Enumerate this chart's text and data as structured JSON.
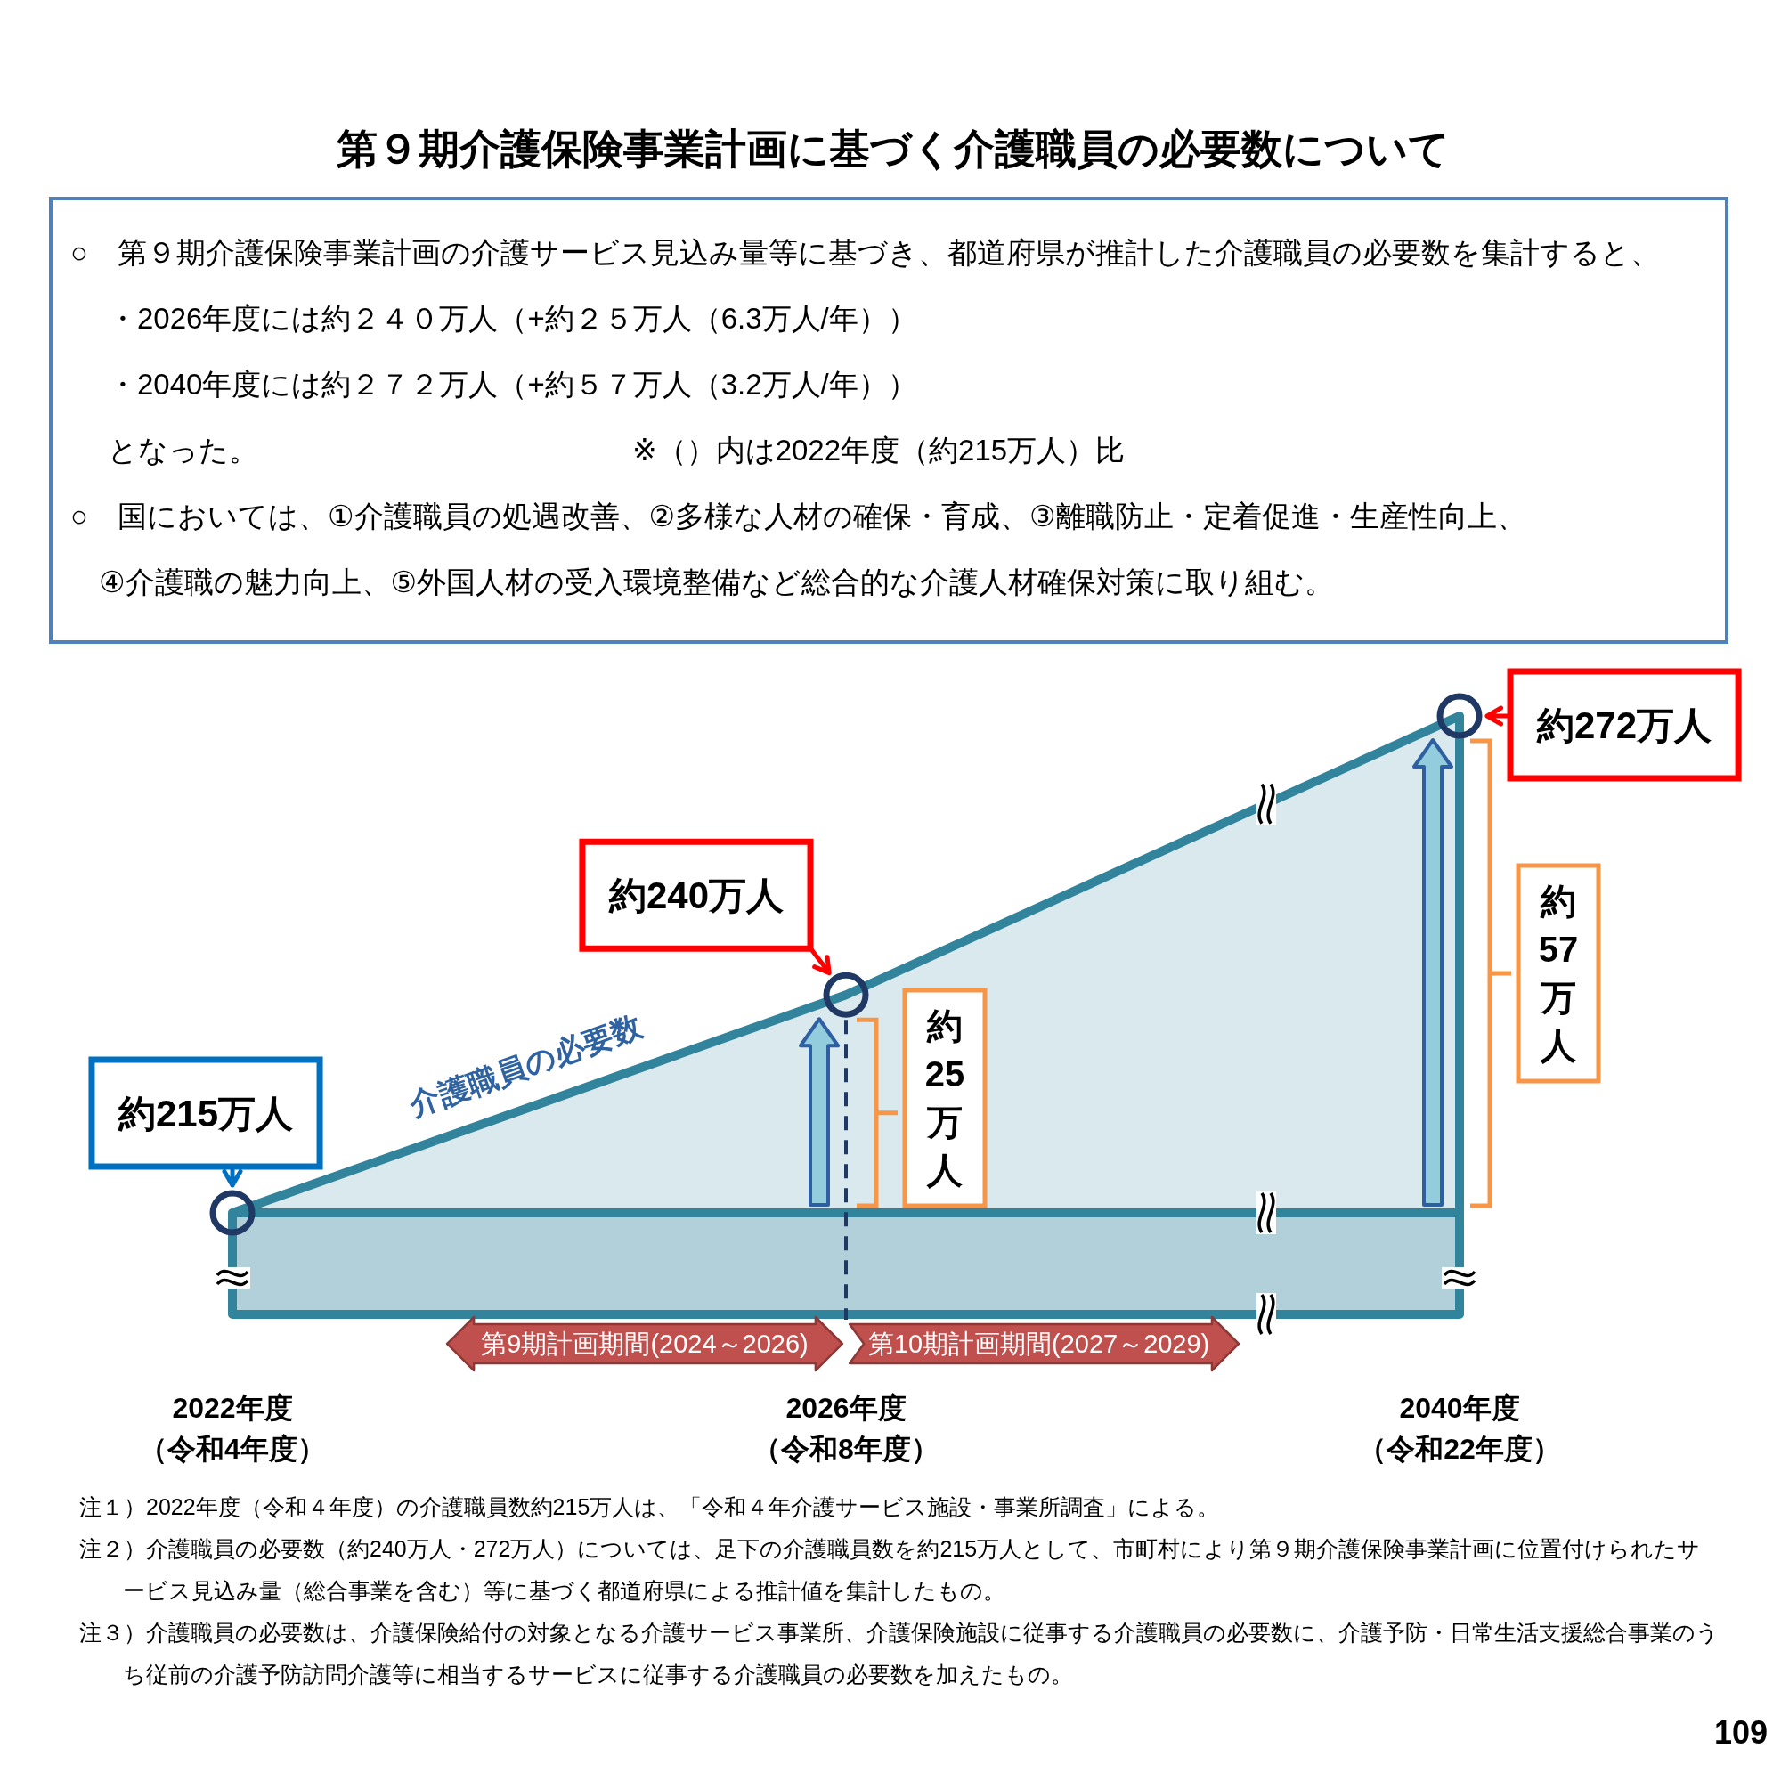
{
  "chart_data": {
    "type": "area",
    "title": "第９期介護保険事業計画に基づく介護職員の必要数について",
    "categories": [
      "2022年度（令和4年度）",
      "2026年度（令和8年度）",
      "2040年度（令和22年度）"
    ],
    "series": [
      {
        "name": "介護職員の必要数",
        "color": "#31849b",
        "values": [
          215,
          240,
          272
        ],
        "value_labels": [
          null,
          "約240万人",
          "約272万人"
        ]
      }
    ],
    "ref_lines": [
      {
        "axis": "y",
        "value": 215,
        "color": "#31849b",
        "label": "約215万人"
      },
      {
        "axis": "x",
        "value": "2026年度（令和8年度）",
        "line_style": "dashed",
        "color": "#1f3864"
      }
    ],
    "annotations": [
      {
        "text": "約25万人",
        "x": "2026年度（令和8年度）"
      },
      {
        "text": "約57万人",
        "x": "2040年度（令和22年度）"
      },
      "○　第９期介護保険事業計画の介護サービス見込み量等に基づき、都道府県が推計した介護職員の必要数を集計すると、",
      "・2026年度には約２４０万人（+約２５万人（6.3万人/年））",
      "・2040年度には約２７２万人（+約５７万人（3.2万人/年））",
      "となった。",
      "※（）内は2022年度（約215万人）比",
      "○　国においては、①介護職員の処遇改善、②多様な人材の確保・育成、③離職防止・定着促進・生産性向上、",
      "④介護職の魅力向上、⑤外国人材の受入環境整備など総合的な介護人材確保対策に取り組む。",
      "第9期計画期間(2024～2026)",
      "第10期計画期間(2027～2029)",
      "注１）2022年度（令和４年度）の介護職員数約215万人は、「令和４年介護サービス施設・事業所調査」による。",
      "注２）介護職員の必要数（約240万人・272万人）については、足下の介護職員数を約215万人として、市町村により第９期介護保険事業計画に位置付けられたサービス見込み量（総合事業を含む）等に基づく都道府県による推計値を集計したもの。",
      "注３）介護職員の必要数は、介護保険給付の対象となる介護サービス事業所、介護保険施設に従事する介護職員の必要数に、介護予防・日常生活支援総合事業のうち従前の介護予防訪問介護等に相当するサービスに従事する介護職員の必要数を加えたもの。",
      "109"
    ]
  }
}
